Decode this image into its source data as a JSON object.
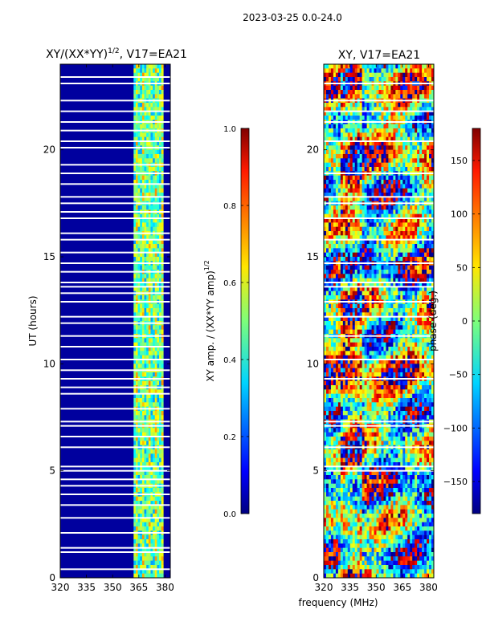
{
  "figure_title": "2023-03-25 0.0-24.0",
  "chart_data": [
    {
      "type": "heatmap",
      "title_main": "XY/(XX*YY)",
      "title_sup": "1/2",
      "title_tail": ", V17=EA21",
      "xlabel": "",
      "ylabel": "UT (hours)",
      "xlim": [
        320,
        383
      ],
      "ylim": [
        0,
        24
      ],
      "xticks": [
        320,
        335,
        350,
        365,
        380
      ],
      "yticks": [
        0,
        5,
        10,
        15,
        20
      ],
      "colormap": "jet",
      "colorbar": {
        "label": "XY amp. / (XX*YY amp)",
        "label_sup": "1/2",
        "range": [
          0.0,
          1.0
        ],
        "ticks": [
          "0.0",
          "0.2",
          "0.4",
          "0.6",
          "0.8",
          "1.0"
        ]
      },
      "bright_band_MHz": [
        362,
        379
      ],
      "bright_band_amp": 0.45,
      "background_amp": 0.03,
      "flagged_hours": [
        0.4,
        1.2,
        1.4,
        2.1,
        2.8,
        3.4,
        3.9,
        4.3,
        4.6,
        5.0,
        5.2,
        6.1,
        6.6,
        7.1,
        7.3,
        7.9,
        8.6,
        8.9,
        9.3,
        9.7,
        10.2,
        10.8,
        11.3,
        11.9,
        12.2,
        12.9,
        13.3,
        13.6,
        13.8,
        14.3,
        14.7,
        15.2,
        15.8,
        16.1,
        16.8,
        17.1,
        17.5,
        17.8,
        18.4,
        18.9,
        19.3,
        20.1,
        20.4,
        20.9,
        21.3,
        21.8,
        22.3,
        23.1,
        23.4
      ]
    },
    {
      "type": "heatmap",
      "title": "XY, V17=EA21",
      "xlabel": "frequency (MHz)",
      "ylabel": "",
      "xlim": [
        320,
        383
      ],
      "ylim": [
        0,
        24
      ],
      "xticks": [
        320,
        335,
        350,
        365,
        380
      ],
      "yticks": [
        0,
        5,
        10,
        15,
        20
      ],
      "colormap": "jet",
      "colorbar": {
        "label": "phase (deg.)",
        "range": [
          -180,
          180
        ],
        "ticks": [
          "150",
          "100",
          "50",
          "0",
          "−50",
          "−100",
          "−150"
        ]
      },
      "flagged_hours": [
        5.0,
        5.2,
        6.1,
        7.1,
        7.3,
        9.3,
        10.2,
        11.3,
        12.2,
        12.9,
        13.6,
        13.8,
        14.7,
        15.8,
        16.8,
        17.5,
        17.8,
        18.9,
        20.4,
        21.3,
        21.8,
        22.3,
        23.1
      ]
    }
  ]
}
